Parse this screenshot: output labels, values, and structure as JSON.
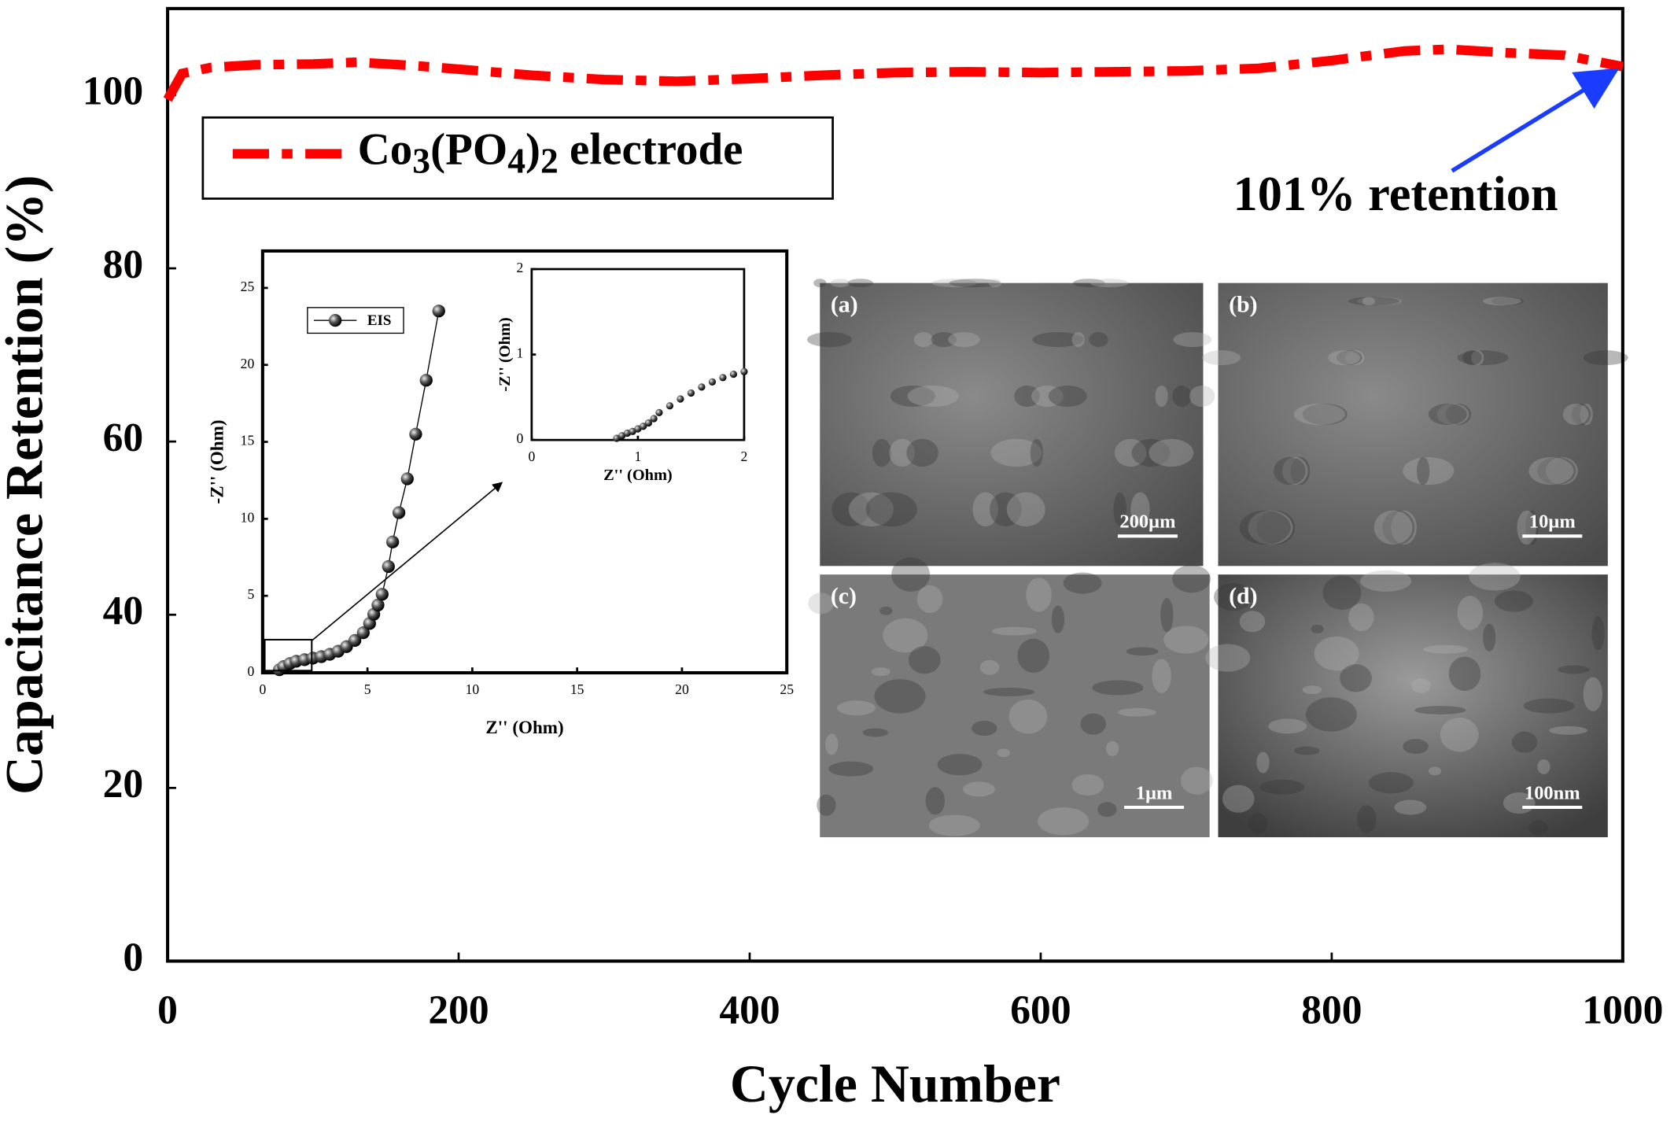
{
  "chart_data": [
    {
      "type": "line",
      "xlabel": "Cycle Number",
      "ylabel": "Capacitance Retention (%)",
      "xlim": [
        0,
        1000
      ],
      "ylim": [
        0,
        110
      ],
      "xticks": [
        0,
        200,
        400,
        600,
        800,
        1000
      ],
      "yticks": [
        0,
        20,
        40,
        60,
        80,
        100
      ],
      "series": [
        {
          "name": "Co3(PO4)2 electrode",
          "color": "#ff0000",
          "dash": "dashdot",
          "x": [
            0,
            10,
            30,
            60,
            100,
            130,
            170,
            200,
            250,
            300,
            350,
            400,
            450,
            500,
            550,
            600,
            650,
            700,
            750,
            800,
            850,
            880,
            920,
            960,
            1000
          ],
          "values": [
            99.5,
            102.5,
            103.2,
            103.5,
            103.6,
            103.8,
            103.4,
            103,
            102.3,
            101.8,
            101.6,
            101.9,
            102.3,
            102.6,
            102.7,
            102.6,
            102.7,
            102.8,
            103.1,
            104,
            105.1,
            105.3,
            104.9,
            104.6,
            103.3
          ]
        }
      ],
      "legend": "upper left",
      "annotation": "101% retention"
    },
    {
      "type": "line",
      "xlabel": "Z'' (Ohm)",
      "ylabel": "-Z'' (Ohm)",
      "xlim": [
        0,
        25
      ],
      "ylim": [
        0,
        27.4
      ],
      "xticks": [
        0,
        5,
        10,
        15,
        20,
        25
      ],
      "yticks": [
        0,
        5,
        10,
        15,
        20,
        25
      ],
      "markers": true,
      "series": [
        {
          "name": "EIS",
          "color": "#000000",
          "x": [
            0.8,
            1,
            1.3,
            1.6,
            2,
            2.4,
            2.8,
            3.2,
            3.6,
            4,
            4.4,
            4.8,
            5.1,
            5.3,
            5.5,
            5.7,
            6,
            6.2,
            6.5,
            6.9,
            7.3,
            7.8,
            8.4
          ],
          "values": [
            0.2,
            0.4,
            0.6,
            0.75,
            0.85,
            0.95,
            1.05,
            1.2,
            1.4,
            1.7,
            2.1,
            2.6,
            3.2,
            3.8,
            4.4,
            5.1,
            6.9,
            8.5,
            10.4,
            12.6,
            15.5,
            19,
            23.5
          ]
        }
      ]
    },
    {
      "type": "scatter",
      "xlabel": "Z'' (Ohm)",
      "ylabel": "-Z'' (Ohm)",
      "xlim": [
        0,
        2
      ],
      "ylim": [
        0,
        2
      ],
      "xticks": [
        0,
        1,
        2
      ],
      "yticks": [
        0,
        1,
        2
      ],
      "series": [
        {
          "color": "#000000",
          "x": [
            0.8,
            0.85,
            0.9,
            0.95,
            1.0,
            1.05,
            1.1,
            1.15,
            1.2,
            1.3,
            1.4,
            1.5,
            1.6,
            1.7,
            1.8,
            1.9,
            2.0
          ],
          "values": [
            0.02,
            0.05,
            0.08,
            0.1,
            0.13,
            0.16,
            0.2,
            0.25,
            0.32,
            0.4,
            0.48,
            0.55,
            0.62,
            0.68,
            0.73,
            0.77,
            0.8
          ]
        }
      ]
    }
  ],
  "sem_panels": [
    {
      "label": "(a)",
      "scale": "200µm"
    },
    {
      "label": "(b)",
      "scale": "10µm"
    },
    {
      "label": "(c)",
      "scale": "1µm"
    },
    {
      "label": "(d)",
      "scale": "100nm"
    }
  ]
}
